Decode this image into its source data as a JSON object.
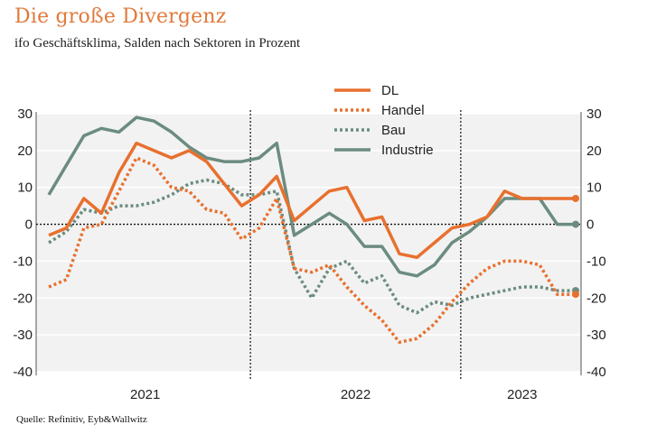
{
  "title": "Die große Divergenz",
  "subtitle": "ifo Geschäftsklima, Salden nach Sektoren in Prozent",
  "source": "Quelle: Refinitiv, Eyb&Wallwitz",
  "chart_data": {
    "type": "line",
    "ylim": [
      -40,
      30
    ],
    "y_ticks": [
      30,
      20,
      10,
      0,
      -10,
      -20,
      -30,
      -40
    ],
    "x_labels": [
      "2021",
      "2022",
      "2023"
    ],
    "grid": "horizontal",
    "legend_position": "top-center",
    "n_months": 31,
    "series": [
      {
        "name": "DL",
        "color": "#e8702e",
        "style": "solid",
        "values": [
          -3,
          -1,
          7,
          3,
          14,
          22,
          20,
          18,
          20,
          17,
          11,
          5,
          8,
          13,
          1,
          5,
          9,
          10,
          1,
          2,
          -8,
          -9,
          -5,
          -1,
          0,
          2,
          9,
          7,
          7,
          7,
          7
        ]
      },
      {
        "name": "Handel",
        "color": "#e8702e",
        "style": "dotted",
        "values": [
          -17,
          -15,
          -1,
          0,
          9,
          18,
          16,
          10,
          9,
          4,
          3,
          -4,
          -1,
          7,
          -12,
          -13,
          -11,
          -17,
          -22,
          -26,
          -32,
          -31,
          -27,
          -21,
          -16,
          -12,
          -10,
          -10,
          -11,
          -19,
          -19
        ]
      },
      {
        "name": "Bau",
        "color": "#6b8c7f",
        "style": "dotted",
        "values": [
          -5,
          -2,
          4,
          3,
          5,
          5,
          6,
          8,
          11,
          12,
          11,
          8,
          8,
          9,
          -12,
          -20,
          -12,
          -10,
          -16,
          -14,
          -22,
          -24,
          -21,
          -22,
          -20,
          -19,
          -18,
          -17,
          -17,
          -18,
          -18
        ]
      },
      {
        "name": "Industrie",
        "color": "#6b8c7f",
        "style": "solid",
        "values": [
          8,
          16,
          24,
          26,
          25,
          29,
          28,
          25,
          21,
          18,
          17,
          17,
          18,
          22,
          -3,
          0,
          3,
          0,
          -6,
          -6,
          -13,
          -14,
          -11,
          -5,
          -2,
          2,
          7,
          7,
          7,
          0,
          0
        ]
      }
    ]
  }
}
